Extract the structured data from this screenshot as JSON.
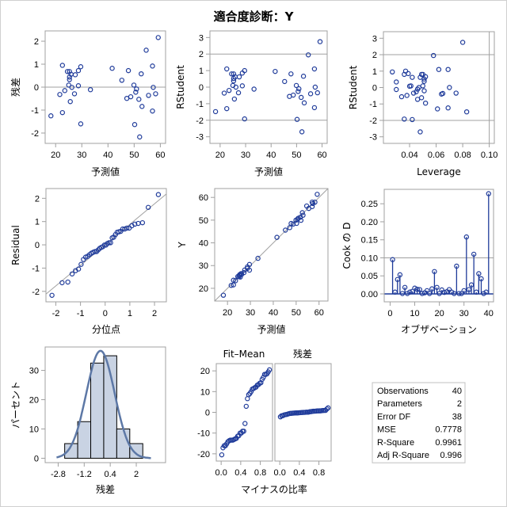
{
  "title": "適合度診断：Y",
  "colors": {
    "marker": "#1f3b9a",
    "refline": "#a0a0a0",
    "frame": "#a0a0a0",
    "hist_fill": "#c9d3e3",
    "density": "#5d78a6"
  },
  "chart_data": [
    {
      "id": "residual-vs-predicted",
      "type": "scatter",
      "xlabel": "予測値",
      "ylabel": "残差",
      "xlim": [
        16,
        62
      ],
      "ylim": [
        -2.45,
        2.45
      ],
      "xticks": [
        20,
        30,
        40,
        50,
        60
      ],
      "yticks": [
        -2,
        -1,
        0,
        1,
        2
      ],
      "reflines_y": [
        0
      ],
      "x_source": "observations.predicted",
      "y_source": "observations.residual"
    },
    {
      "id": "rstudent-vs-predicted",
      "type": "scatter",
      "xlabel": "予測値",
      "ylabel": "RStudent",
      "xlim": [
        16,
        62
      ],
      "ylim": [
        -3.4,
        3.4
      ],
      "xticks": [
        20,
        30,
        40,
        50,
        60
      ],
      "yticks": [
        -3,
        -2,
        -1,
        0,
        1,
        2,
        3
      ],
      "reflines_y": [
        -2,
        2
      ],
      "x_source": "observations.predicted",
      "y_source": "observations.rstudent"
    },
    {
      "id": "rstudent-vs-leverage",
      "type": "scatter",
      "xlabel": "Leverage",
      "ylabel": "RStudent",
      "xlim": [
        0.0203,
        0.1038
      ],
      "ylim": [
        -3.4,
        3.4
      ],
      "xticks": [
        0.04,
        0.06,
        0.08,
        0.1
      ],
      "xtick_labels": [
        "0.04",
        "0.06",
        "0.08",
        "0.10"
      ],
      "yticks": [
        -3,
        -2,
        -1,
        0,
        1,
        2,
        3
      ],
      "reflines_y": [
        -2,
        2
      ],
      "reflines_x": [
        0.1
      ],
      "x_source": "observations.leverage",
      "y_source": "observations.rstudent"
    },
    {
      "id": "qq-residual",
      "type": "scatter",
      "xlabel": "分位点",
      "ylabel": "Residual",
      "xlim": [
        -2.4,
        2.48
      ],
      "ylim": [
        -2.45,
        2.42
      ],
      "xticks": [
        -2,
        -1,
        0,
        1,
        2
      ],
      "yticks": [
        -2,
        -1,
        0,
        1,
        2
      ],
      "quantiles": [
        -2.156,
        -1.746,
        -1.512,
        -1.34,
        -1.201,
        -1.081,
        -0.976,
        -0.88,
        -0.792,
        -0.709,
        -0.631,
        -0.557,
        -0.485,
        -0.416,
        -0.349,
        -0.284,
        -0.22,
        -0.157,
        -0.094,
        -0.031,
        0.031,
        0.094,
        0.157,
        0.22,
        0.284,
        0.349,
        0.416,
        0.485,
        0.557,
        0.631,
        0.709,
        0.792,
        0.88,
        0.976,
        1.081,
        1.201,
        1.34,
        1.512,
        1.746,
        2.156
      ],
      "refline": {
        "intercept": 0,
        "slope": 0.882
      }
    },
    {
      "id": "y-vs-predicted",
      "type": "scatter",
      "xlabel": "予測値",
      "ylabel": "Y",
      "xlim": [
        14.4,
        63.9
      ],
      "ylim": [
        14.4,
        63.9
      ],
      "xticks": [
        20,
        30,
        40,
        50,
        60
      ],
      "yticks": [
        20,
        30,
        40,
        50,
        60
      ],
      "refline": {
        "intercept": 0,
        "slope": 1
      }
    },
    {
      "id": "cooks-d",
      "type": "needle",
      "xlabel": "オブザベーション",
      "ylabel": "Cook の D",
      "xlim": [
        -2.4,
        42
      ],
      "ylim": [
        -0.022,
        0.29
      ],
      "xticks": [
        0,
        10,
        20,
        30,
        40
      ],
      "yticks": [
        0,
        0.05,
        0.1,
        0.15,
        0.2,
        0.25
      ],
      "ytick_labels": [
        "0.00",
        "0.05",
        "0.10",
        "0.15",
        "0.20",
        "0.25"
      ],
      "reflines_y": [
        0.1
      ],
      "values": [
        0.095,
        0.005,
        0.04,
        0.053,
        0.001,
        0.018,
        0.001,
        0.005,
        0.007,
        0.016,
        0.013,
        0.012,
        0.001,
        0.003,
        0.009,
        0.001,
        0.014,
        0.062,
        0.018,
        0.001,
        0.011,
        0.004,
        0.006,
        0.012,
        0.005,
        0.001,
        0.077,
        0.001,
        0.001,
        0.009,
        0.158,
        0.012,
        0.025,
        0.11,
        0.005,
        0.056,
        0.042,
        0.001,
        0.005,
        0.278
      ]
    },
    {
      "id": "residual-histogram",
      "type": "bar",
      "xlabel": "残差",
      "ylabel": "パーセント",
      "xlim": [
        -3.6,
        3.8
      ],
      "ylim": [
        -1.5,
        38
      ],
      "xticks": [
        -2.8,
        -1.2,
        0.4,
        2
      ],
      "xtick_labels": [
        "-2.8",
        "-1.2",
        "0.4",
        "2"
      ],
      "yticks": [
        0,
        10,
        20,
        30
      ],
      "bin_edges": [
        -2.4,
        -1.6,
        -0.8,
        0.0,
        0.8,
        1.6,
        2.4
      ],
      "values": [
        5,
        12.5,
        32.5,
        35,
        10,
        5
      ],
      "density": {
        "mean": 0,
        "sd": 0.87,
        "scale": 0.8
      }
    },
    {
      "id": "fit-mean-residual-spread",
      "type": "scatter",
      "panels": [
        "Fit–Mean",
        "残差"
      ],
      "xlabel": "マイナスの比率",
      "xlim": [
        -0.1,
        1.05
      ],
      "ylim": [
        -23.5,
        23.5
      ],
      "xticks": [
        0.0,
        0.4,
        0.8
      ],
      "xtick_labels": [
        "0.0",
        "0.4",
        "0.8"
      ],
      "yticks": [
        -20,
        -10,
        0,
        10,
        20
      ],
      "fit_mean_center": 38.7
    }
  ],
  "observations": {
    "predicted": [
      59.2,
      54.6,
      22.6,
      29.6,
      41.6,
      47.8,
      57.0,
      24.5,
      25.3,
      28.7,
      25.9,
      27.5,
      52.7,
      25.3,
      25.3,
      45.3,
      25.0,
      49.9,
      26.2,
      28.7,
      57.3,
      50.9,
      33.3,
      23.5,
      50.6,
      21.6,
      27.2,
      58.2,
      55.5,
      48.7,
      47.2,
      51.8,
      25.6,
      53.0,
      57.0,
      22.6,
      18.2,
      29.6,
      50.2,
      52.1
    ],
    "residual": [
      2.16,
      1.61,
      0.95,
      0.89,
      0.82,
      0.72,
      0.92,
      0.68,
      0.68,
      0.72,
      0.56,
      0.54,
      0.58,
      0.44,
      0.33,
      0.3,
      0.09,
      0.09,
      -0.01,
      0.06,
      -0.01,
      -0.08,
      -0.11,
      -0.15,
      -0.22,
      -0.32,
      -0.29,
      -0.29,
      -0.36,
      -0.42,
      -0.49,
      -0.53,
      -0.63,
      -0.84,
      -1.04,
      -1.11,
      -1.25,
      -1.6,
      -1.63,
      -2.17
    ],
    "rstudent": [
      2.75,
      1.95,
      1.1,
      1.0,
      0.95,
      0.8,
      1.1,
      0.8,
      0.8,
      0.85,
      0.62,
      0.62,
      0.66,
      0.52,
      0.38,
      0.34,
      0.1,
      0.1,
      0.0,
      0.08,
      0.0,
      -0.1,
      -0.12,
      -0.2,
      -0.26,
      -0.36,
      -0.34,
      -0.34,
      -0.4,
      -0.48,
      -0.56,
      -0.62,
      -0.72,
      -0.95,
      -1.24,
      -1.3,
      -1.48,
      -1.92,
      -1.95,
      -2.7
    ],
    "leverage": [
      0.08,
      0.058,
      0.062,
      0.037,
      0.027,
      0.036,
      0.069,
      0.05,
      0.049,
      0.039,
      0.048,
      0.042,
      0.052,
      0.051,
      0.051,
      0.03,
      0.05,
      0.041,
      0.047,
      0.04,
      0.07,
      0.046,
      0.03,
      0.051,
      0.045,
      0.065,
      0.043,
      0.075,
      0.064,
      0.038,
      0.034,
      0.049,
      0.046,
      0.052,
      0.069,
      0.061,
      0.083,
      0.036,
      0.042,
      0.048
    ]
  },
  "fit_statistics": {
    "rows": [
      {
        "label": "Observations",
        "value": "40"
      },
      {
        "label": "Parameters",
        "value": "2"
      },
      {
        "label": "Error DF",
        "value": "38"
      },
      {
        "label": "MSE",
        "value": "0.7778"
      },
      {
        "label": "R-Square",
        "value": "0.9961"
      },
      {
        "label": "Adj R-Square",
        "value": "0.996"
      }
    ]
  }
}
